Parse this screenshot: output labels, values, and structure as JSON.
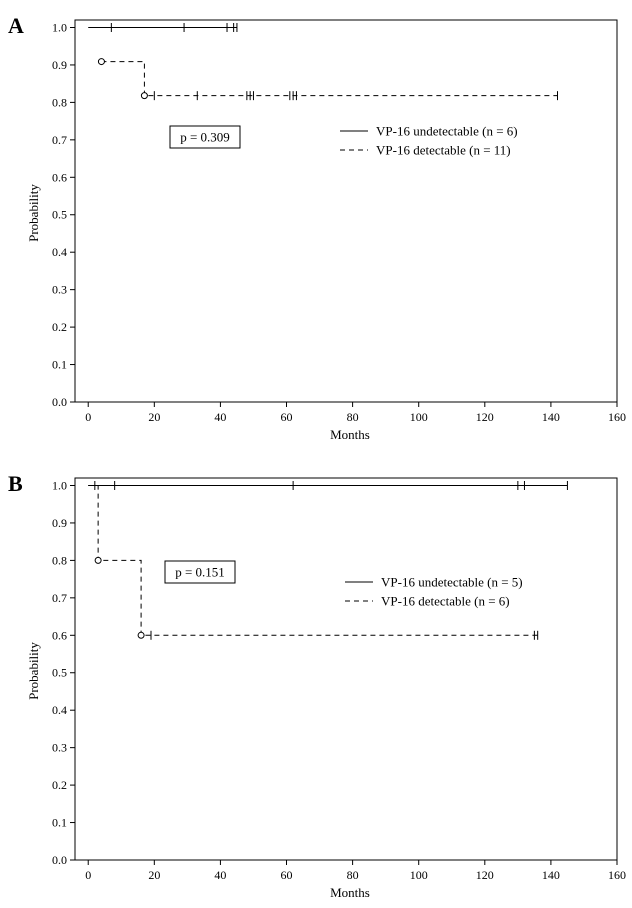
{
  "chart_data": [
    {
      "type": "line",
      "panel_label": "A",
      "xlabel": "Months",
      "ylabel": "Probability",
      "xlim": [
        -4,
        160
      ],
      "ylim": [
        0,
        1.02
      ],
      "x_ticks": [
        0,
        20,
        40,
        60,
        80,
        100,
        120,
        140,
        160
      ],
      "y_ticks": [
        0.0,
        0.1,
        0.2,
        0.3,
        0.4,
        0.5,
        0.6,
        0.7,
        0.8,
        0.9,
        1.0
      ],
      "grid": false,
      "legend_position": "middle-right",
      "annotation": "p = 0.309",
      "series": [
        {
          "name": "VP-16 undetectable (n = 6)",
          "line_style": "solid",
          "step_x": [
            0,
            45
          ],
          "step_y": [
            1.0,
            1.0
          ],
          "censored_x": [
            7,
            29,
            42,
            44,
            45
          ],
          "censored_y": [
            1.0,
            1.0,
            1.0,
            1.0,
            1.0
          ],
          "events_x": [],
          "events_y": []
        },
        {
          "name": "VP-16 detectable (n = 11)",
          "line_style": "dashed",
          "step_x": [
            4,
            17,
            142
          ],
          "step_y": [
            0.909,
            0.818,
            0.818
          ],
          "censored_x": [
            20,
            33,
            48,
            49,
            50,
            61,
            62,
            63,
            142
          ],
          "censored_y": [
            0.818,
            0.818,
            0.818,
            0.818,
            0.818,
            0.818,
            0.818,
            0.818,
            0.818
          ],
          "events_x": [
            4,
            17
          ],
          "events_y": [
            0.909,
            0.818
          ]
        }
      ]
    },
    {
      "type": "line",
      "panel_label": "B",
      "xlabel": "Months",
      "ylabel": "Probability",
      "xlim": [
        -4,
        160
      ],
      "ylim": [
        0,
        1.02
      ],
      "x_ticks": [
        0,
        20,
        40,
        60,
        80,
        100,
        120,
        140,
        160
      ],
      "y_ticks": [
        0.0,
        0.1,
        0.2,
        0.3,
        0.4,
        0.5,
        0.6,
        0.7,
        0.8,
        0.9,
        1.0
      ],
      "grid": false,
      "legend_position": "middle-right",
      "annotation": "p = 0.151",
      "series": [
        {
          "name": "VP-16 undetectable (n = 5)",
          "line_style": "solid",
          "step_x": [
            0,
            145
          ],
          "step_y": [
            1.0,
            1.0
          ],
          "censored_x": [
            8,
            62,
            130,
            132,
            145
          ],
          "censored_y": [
            1.0,
            1.0,
            1.0,
            1.0,
            1.0
          ],
          "events_x": [],
          "events_y": []
        },
        {
          "name": "VP-16 detectable (n = 6)",
          "line_style": "dashed",
          "step_x": [
            0,
            3,
            16,
            136
          ],
          "step_y": [
            1.0,
            0.8,
            0.6,
            0.6
          ],
          "censored_x": [
            2,
            19,
            135,
            136
          ],
          "censored_y": [
            1.0,
            0.6,
            0.6,
            0.6
          ],
          "events_x": [
            3,
            16
          ],
          "events_y": [
            0.8,
            0.6
          ]
        }
      ]
    }
  ]
}
